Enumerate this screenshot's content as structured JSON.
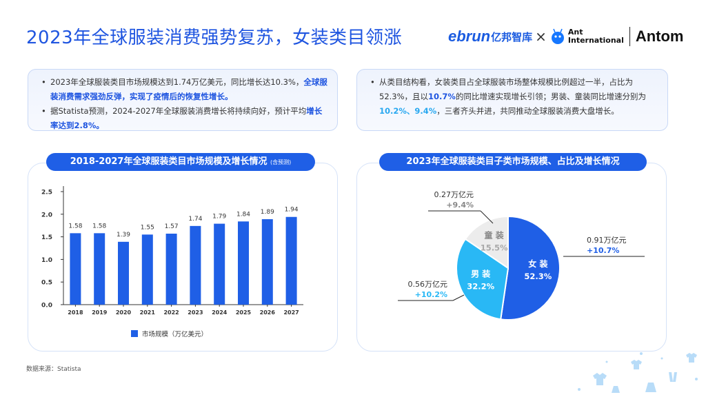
{
  "title": "2023年全球服装消费强势复苏，女装类目领涨",
  "logos": {
    "ebrun": "ebrun",
    "ebrun_cn": "亿邦智库",
    "times": "×",
    "ant_line1": "Ant",
    "ant_line2": "International",
    "antom": "Antom"
  },
  "left_box": {
    "b1_t1": "2023年全球服装类目市场规模达到1.74万亿美元，同比增长达10.3%，",
    "b1_hl": "全球服装消费需求强劲反弹，实现了疫情后的恢复性增长。",
    "b2_t1": "据Statista预测，2024-2027年全球服装消费增长将持续向好，预计平均",
    "b2_hl": "增长率达到2.8%。"
  },
  "right_box": {
    "t1": "从类目结构看，女装类目占全球服装市场整体规模比例超过一半，占比为52.3%，且以",
    "h1": "10.7%",
    "t2": "的同比增速实现增长引领；男装、童装同比增速分别为",
    "h2": "10.2%、9.4%",
    "t3": "，三者齐头并进，共同推动全球服装消费大盘增长。"
  },
  "source": "数据来源：Statista",
  "colors": {
    "accent": "#1f5fe6",
    "cyan": "#29b8f5",
    "grey": "#ececec"
  },
  "chart_data": [
    {
      "type": "bar",
      "title": "2018-2027年全球服装类目市场规模及增长情况",
      "title_note": "(含预测)",
      "categories": [
        "2018",
        "2019",
        "2020",
        "2021",
        "2022",
        "2023",
        "2024",
        "2025",
        "2026",
        "2027"
      ],
      "series": [
        {
          "name": "市场规模（万亿美元）",
          "values": [
            1.58,
            1.58,
            1.39,
            1.55,
            1.57,
            1.74,
            1.79,
            1.84,
            1.89,
            1.94
          ]
        }
      ],
      "yticks": [
        "0.0",
        "0.5",
        "1.0",
        "1.5",
        "2.0",
        "2.5"
      ],
      "ylim": [
        0,
        2.5
      ],
      "legend": "bottom",
      "grid": false
    },
    {
      "type": "pie",
      "title": "2023年全球服装类目子类市场规模、占比及增长情况",
      "slices": [
        {
          "label": "女 装",
          "percent": 52.3,
          "percent_text": "52.3%",
          "value_text": "0.91万亿元",
          "growth_text": "+10.7%",
          "color": "#1f5fe6"
        },
        {
          "label": "男 装",
          "percent": 32.2,
          "percent_text": "32.2%",
          "value_text": "0.56万亿元",
          "growth_text": "+10.2%",
          "color": "#29b8f5"
        },
        {
          "label": "童 装",
          "percent": 15.5,
          "percent_text": "15.5%",
          "value_text": "0.27万亿元",
          "growth_text": "+9.4%",
          "color": "#ececec"
        }
      ]
    }
  ]
}
